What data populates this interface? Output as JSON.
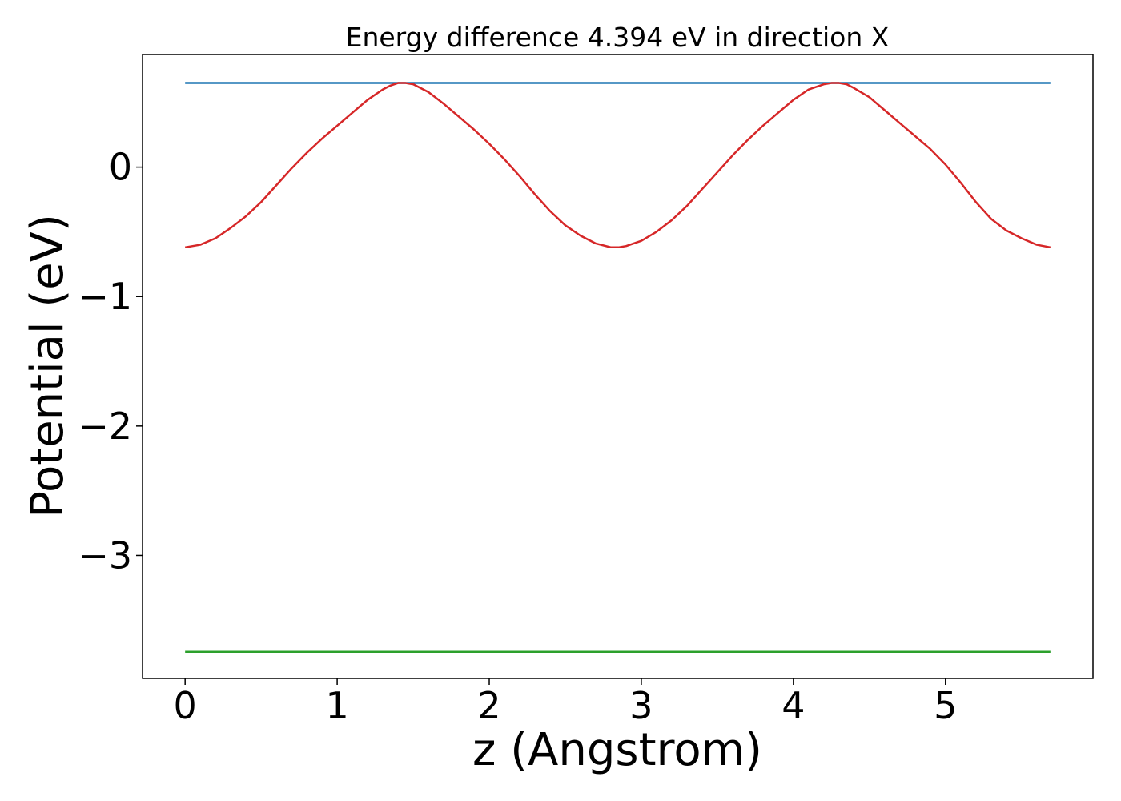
{
  "chart_data": {
    "type": "line",
    "title": "Energy difference 4.394 eV in direction X",
    "xlabel": "z (Angstrom)",
    "ylabel": "Potential (eV)",
    "xlim": [
      -0.28,
      5.97
    ],
    "ylim": [
      -3.95,
      0.87
    ],
    "x_ticks": [
      0,
      1,
      2,
      3,
      4,
      5
    ],
    "x_tick_labels": [
      "0",
      "1",
      "2",
      "3",
      "4",
      "5"
    ],
    "y_ticks": [
      0,
      -1,
      -2,
      -3
    ],
    "y_tick_labels": [
      "0",
      "−1",
      "−2",
      "−3"
    ],
    "grid": false,
    "legend": null,
    "series": [
      {
        "color": "#1f77b4",
        "x": [
          0,
          5.69
        ],
        "y": [
          0.65,
          0.65
        ]
      },
      {
        "color": "#2ca02c",
        "x": [
          0,
          5.69
        ],
        "y": [
          -3.744,
          -3.744
        ]
      },
      {
        "color": "#d62728",
        "x": [
          0,
          0.1,
          0.2,
          0.3,
          0.4,
          0.5,
          0.6,
          0.7,
          0.8,
          0.9,
          1.0,
          1.1,
          1.2,
          1.3,
          1.35,
          1.4,
          1.45,
          1.5,
          1.6,
          1.7,
          1.8,
          1.9,
          2.0,
          2.1,
          2.2,
          2.3,
          2.4,
          2.5,
          2.6,
          2.7,
          2.8,
          2.85,
          2.9,
          3.0,
          3.1,
          3.2,
          3.3,
          3.4,
          3.5,
          3.6,
          3.7,
          3.8,
          3.9,
          4.0,
          4.1,
          4.2,
          4.25,
          4.3,
          4.35,
          4.4,
          4.5,
          4.6,
          4.7,
          4.8,
          4.9,
          5.0,
          5.1,
          5.2,
          5.3,
          5.4,
          5.5,
          5.6,
          5.69
        ],
        "y": [
          -0.62,
          -0.6,
          -0.55,
          -0.47,
          -0.38,
          -0.27,
          -0.14,
          -0.01,
          0.11,
          0.22,
          0.32,
          0.42,
          0.52,
          0.6,
          0.63,
          0.65,
          0.65,
          0.64,
          0.58,
          0.49,
          0.39,
          0.29,
          0.18,
          0.06,
          -0.07,
          -0.21,
          -0.34,
          -0.45,
          -0.53,
          -0.59,
          -0.62,
          -0.62,
          -0.61,
          -0.57,
          -0.5,
          -0.41,
          -0.3,
          -0.17,
          -0.04,
          0.09,
          0.21,
          0.32,
          0.42,
          0.52,
          0.6,
          0.64,
          0.65,
          0.65,
          0.64,
          0.61,
          0.54,
          0.44,
          0.34,
          0.24,
          0.14,
          0.02,
          -0.12,
          -0.27,
          -0.4,
          -0.49,
          -0.55,
          -0.6,
          -0.62
        ]
      }
    ]
  }
}
